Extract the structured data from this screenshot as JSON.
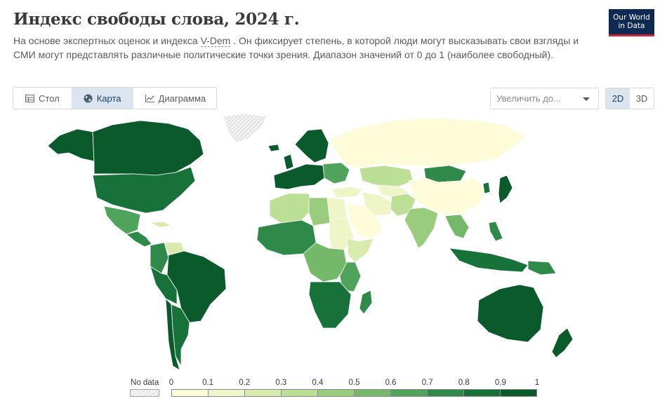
{
  "header": {
    "title": "Индекс свободы слова, 2024 г.",
    "subtitle_before": "На основе экспертных оценок и индекса ",
    "subtitle_link": "V-Dem",
    "subtitle_after": " . Он фиксирует степень, в которой люди могут высказывать свои взгляды и",
    "subtitle_line2": "СМИ могут представлять различные политические точки зрения. Диапазон значений от 0 до 1 (наиболее свободный).",
    "logo_line1": "Our World",
    "logo_line2": "in Data"
  },
  "tabs": [
    {
      "label": "Стол",
      "icon": "table-icon",
      "active": false
    },
    {
      "label": "Карта",
      "icon": "globe-icon",
      "active": true
    },
    {
      "label": "Диаграмма",
      "icon": "line-chart-icon",
      "active": false
    }
  ],
  "zoom": {
    "placeholder": "Увеличить до...",
    "icon": "chevron-down-icon"
  },
  "view_toggle": {
    "option_2d": "2D",
    "option_3d": "3D",
    "selected": "2D"
  },
  "legend": {
    "no_data_label": "No data",
    "ticks": [
      "0",
      "0.1",
      "0.2",
      "0.3",
      "0.4",
      "0.5",
      "0.6",
      "0.7",
      "0.8",
      "0.9",
      "1"
    ],
    "colors": [
      "#fefcd8",
      "#eef5c6",
      "#d7ebac",
      "#bbdf95",
      "#99cd7d",
      "#74b96a",
      "#4fa35b",
      "#2f8a4a",
      "#177239",
      "#0a5a2c"
    ]
  },
  "colors": {
    "no_data": "#e4e4e4",
    "ocean": "#ffffff",
    "border": "#ffffff"
  },
  "map": {
    "regions": [
      {
        "name": "canada",
        "value": 0.95
      },
      {
        "name": "alaska",
        "value": 0.93
      },
      {
        "name": "greenland",
        "value": null
      },
      {
        "name": "usa",
        "value": 0.88
      },
      {
        "name": "mexico",
        "value": 0.62
      },
      {
        "name": "central-america",
        "value": 0.7
      },
      {
        "name": "cuba",
        "value": 0.2
      },
      {
        "name": "colombia",
        "value": 0.7
      },
      {
        "name": "venezuela",
        "value": 0.22
      },
      {
        "name": "brazil",
        "value": 0.9
      },
      {
        "name": "peru-bolivia",
        "value": 0.82
      },
      {
        "name": "chile",
        "value": 0.93
      },
      {
        "name": "argentina",
        "value": 0.88
      },
      {
        "name": "iceland",
        "value": 0.95
      },
      {
        "name": "scandinavia",
        "value": 0.96
      },
      {
        "name": "western-europe",
        "value": 0.92
      },
      {
        "name": "uk",
        "value": 0.92
      },
      {
        "name": "eastern-europe",
        "value": 0.65
      },
      {
        "name": "russia",
        "value": 0.05
      },
      {
        "name": "turkey",
        "value": 0.18
      },
      {
        "name": "kazakhstan",
        "value": 0.3
      },
      {
        "name": "central-asia",
        "value": 0.12
      },
      {
        "name": "mongolia",
        "value": 0.7
      },
      {
        "name": "china",
        "value": 0.04
      },
      {
        "name": "iran",
        "value": 0.1
      },
      {
        "name": "arabia",
        "value": 0.05
      },
      {
        "name": "pakistan-afghanistan",
        "value": 0.3
      },
      {
        "name": "india",
        "value": 0.48
      },
      {
        "name": "southeast-asia",
        "value": 0.55
      },
      {
        "name": "japan",
        "value": 0.92
      },
      {
        "name": "korea",
        "value": 0.88
      },
      {
        "name": "philippines",
        "value": 0.7
      },
      {
        "name": "indonesia",
        "value": 0.8
      },
      {
        "name": "papua",
        "value": 0.75
      },
      {
        "name": "north-africa-west",
        "value": 0.35
      },
      {
        "name": "libya",
        "value": 0.45
      },
      {
        "name": "egypt",
        "value": 0.12
      },
      {
        "name": "sudan",
        "value": 0.18
      },
      {
        "name": "west-africa",
        "value": 0.75
      },
      {
        "name": "central-africa",
        "value": 0.55
      },
      {
        "name": "horn-of-africa",
        "value": 0.25
      },
      {
        "name": "east-africa",
        "value": 0.6
      },
      {
        "name": "southern-africa",
        "value": 0.85
      },
      {
        "name": "madagascar",
        "value": 0.78
      },
      {
        "name": "australia",
        "value": 0.95
      },
      {
        "name": "new-zealand",
        "value": 0.96
      }
    ]
  }
}
